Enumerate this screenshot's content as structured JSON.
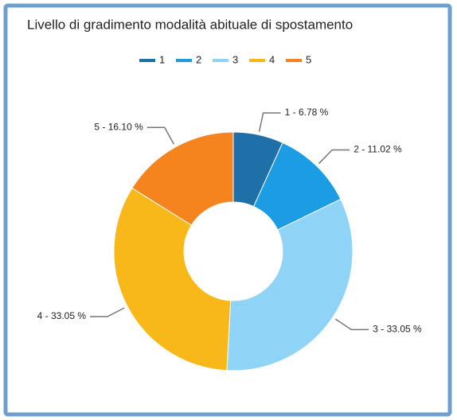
{
  "chart_data": {
    "type": "pie",
    "donut": true,
    "title": "Livello di gradimento modalità abituale di spostamento",
    "categories": [
      "1",
      "2",
      "3",
      "4",
      "5"
    ],
    "values": [
      6.78,
      11.02,
      33.05,
      33.05,
      16.1
    ],
    "value_labels": [
      "1 - 6.78 %",
      "2 - 11.02 %",
      "3 - 33.05 %",
      "4 - 33.05 %",
      "5 - 16.10 %"
    ],
    "colors": [
      "#1f6fa8",
      "#1b9ce3",
      "#8fd4f6",
      "#f9b81a",
      "#f5841f"
    ],
    "legend": "top"
  }
}
